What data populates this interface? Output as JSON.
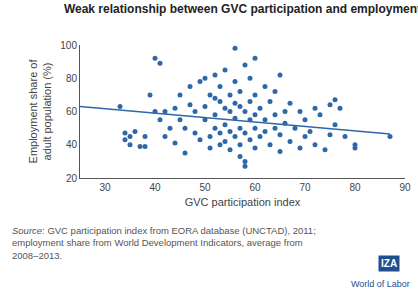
{
  "chart_data": {
    "type": "scatter",
    "title": "Weak relationship between GVC participation and employment",
    "x_label": "GVC participation index",
    "y_label": "Employment share of\nadult population (%)",
    "xlim": [
      25,
      90
    ],
    "xticks": [
      30,
      40,
      50,
      60,
      70,
      80,
      90
    ],
    "ylim": [
      20,
      100
    ],
    "yticks": [
      20,
      40,
      60,
      80,
      100
    ],
    "grid": false,
    "source": "Source: GVC participation index from EORA database (UNCTAD), 2011;\nemployment share from World Development Indicators, average from\n2008–2013.",
    "logo": [
      "IZA",
      "World of Labor"
    ],
    "series": [
      {
        "type": "scatter",
        "color": "#2f68a8",
        "marker": "circle",
        "x": [
          33,
          34,
          34,
          35,
          35,
          36,
          37,
          38,
          38,
          39,
          40,
          40,
          41,
          41,
          42,
          42,
          43,
          44,
          44,
          45,
          45,
          46,
          46,
          47,
          47,
          48,
          48,
          49,
          49,
          50,
          50,
          50,
          51,
          51,
          51,
          52,
          52,
          52,
          52,
          53,
          53,
          53,
          53,
          54,
          54,
          54,
          54,
          55,
          55,
          55,
          55,
          56,
          56,
          56,
          56,
          56,
          57,
          57,
          57,
          57,
          57,
          58,
          58,
          58,
          58,
          58,
          59,
          59,
          59,
          59,
          60,
          60,
          60,
          60,
          60,
          61,
          61,
          62,
          62,
          62,
          63,
          63,
          64,
          64,
          64,
          65,
          65,
          65,
          66,
          66,
          67,
          67,
          68,
          69,
          69,
          70,
          70,
          71,
          72,
          72,
          73,
          74,
          75,
          75,
          76,
          76,
          77,
          78,
          80,
          80,
          87
        ],
        "values": [
          63,
          43,
          47,
          40,
          45,
          48,
          39,
          39,
          45,
          70,
          60,
          92,
          89,
          55,
          60,
          45,
          50,
          41,
          62,
          70,
          55,
          50,
          35,
          75,
          64,
          60,
          47,
          78,
          43,
          63,
          55,
          80,
          70,
          45,
          38,
          68,
          58,
          50,
          82,
          75,
          66,
          40,
          47,
          85,
          62,
          52,
          42,
          70,
          60,
          48,
          37,
          78,
          65,
          56,
          45,
          98,
          63,
          72,
          50,
          40,
          33,
          88,
          60,
          47,
          30,
          27,
          66,
          55,
          43,
          80,
          70,
          58,
          50,
          38,
          92,
          62,
          45,
          75,
          55,
          48,
          66,
          40,
          58,
          50,
          72,
          46,
          36,
          82,
          60,
          53,
          42,
          65,
          50,
          38,
          60,
          55,
          45,
          48,
          40,
          62,
          58,
          37,
          64,
          46,
          67,
          52,
          62,
          45,
          40,
          38,
          45
        ]
      },
      {
        "type": "line",
        "color": "#2f68a8",
        "line_style": "solid",
        "x": [
          25,
          87
        ],
        "values": [
          63,
          46.5
        ]
      }
    ]
  }
}
